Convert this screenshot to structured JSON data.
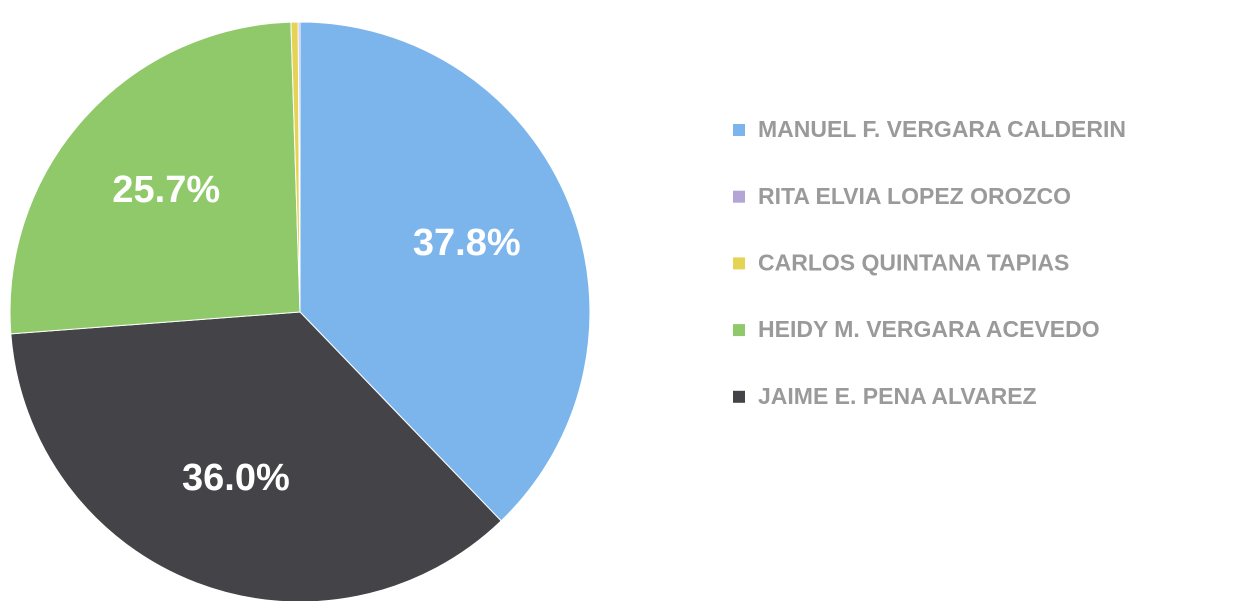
{
  "chart_data": {
    "type": "pie",
    "categories": [
      "MANUEL F. VERGARA CALDERIN",
      "RITA ELVIA LOPEZ OROZCO",
      "CARLOS QUINTANA TAPIAS",
      "HEIDY M. VERGARA ACEVEDO",
      "JAIME E. PENA ALVAREZ"
    ],
    "values": [
      37.8,
      0.1,
      0.4,
      25.7,
      36.0
    ],
    "value_labels": [
      "37.8%",
      null,
      null,
      "25.7%",
      "36.0%"
    ],
    "colors": [
      "#7cb5ec",
      "#b3a5d6",
      "#e4d354",
      "#90c96a",
      "#434348"
    ],
    "legend": "right"
  }
}
